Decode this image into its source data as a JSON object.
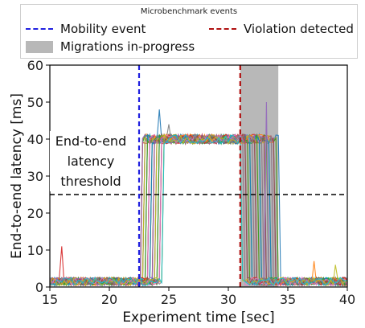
{
  "legend": {
    "title": "Microbenchmark events",
    "items": [
      {
        "label": "Mobility event",
        "style": "dashed",
        "color": "#2020e0"
      },
      {
        "label": "Violation detected",
        "style": "dashed",
        "color": "#b01010"
      },
      {
        "label": "Migrations in-progress",
        "style": "patch",
        "color": "#b8b8b8"
      }
    ]
  },
  "threshold_label": {
    "line1": "End-to-end",
    "line2": "latency",
    "line3": "threshold"
  },
  "chart_data": {
    "type": "line",
    "title": "",
    "xlabel": "Experiment time [sec]",
    "ylabel": "End-to-end latency [ms]",
    "xlim": [
      15,
      40
    ],
    "ylim": [
      0,
      60
    ],
    "xticks": [
      15,
      20,
      25,
      30,
      35,
      40
    ],
    "yticks": [
      0,
      10,
      20,
      30,
      40,
      50,
      60
    ],
    "grid": false,
    "legend_position": "top-outside",
    "mobility_event_x": 22.5,
    "violation_detected_x": 31.0,
    "migration_span": [
      31.0,
      34.2
    ],
    "threshold_y": 25,
    "num_series": 40,
    "low_level_ms": 1.5,
    "high_level_ms": 40,
    "rise_window": [
      22.5,
      24.5
    ],
    "fall_window": [
      31.0,
      34.2
    ],
    "spikes": [
      {
        "x": 16.0,
        "y": 11
      },
      {
        "x": 24.2,
        "y": 48
      },
      {
        "x": 25.0,
        "y": 44
      },
      {
        "x": 33.2,
        "y": 50
      },
      {
        "x": 37.2,
        "y": 7
      },
      {
        "x": 39.0,
        "y": 6
      }
    ],
    "series_colors": [
      "#1f77b4",
      "#ff7f0e",
      "#2ca02c",
      "#d62728",
      "#9467bd",
      "#8c564b",
      "#e377c2",
      "#7f7f7f",
      "#bcbd22",
      "#17becf"
    ]
  }
}
